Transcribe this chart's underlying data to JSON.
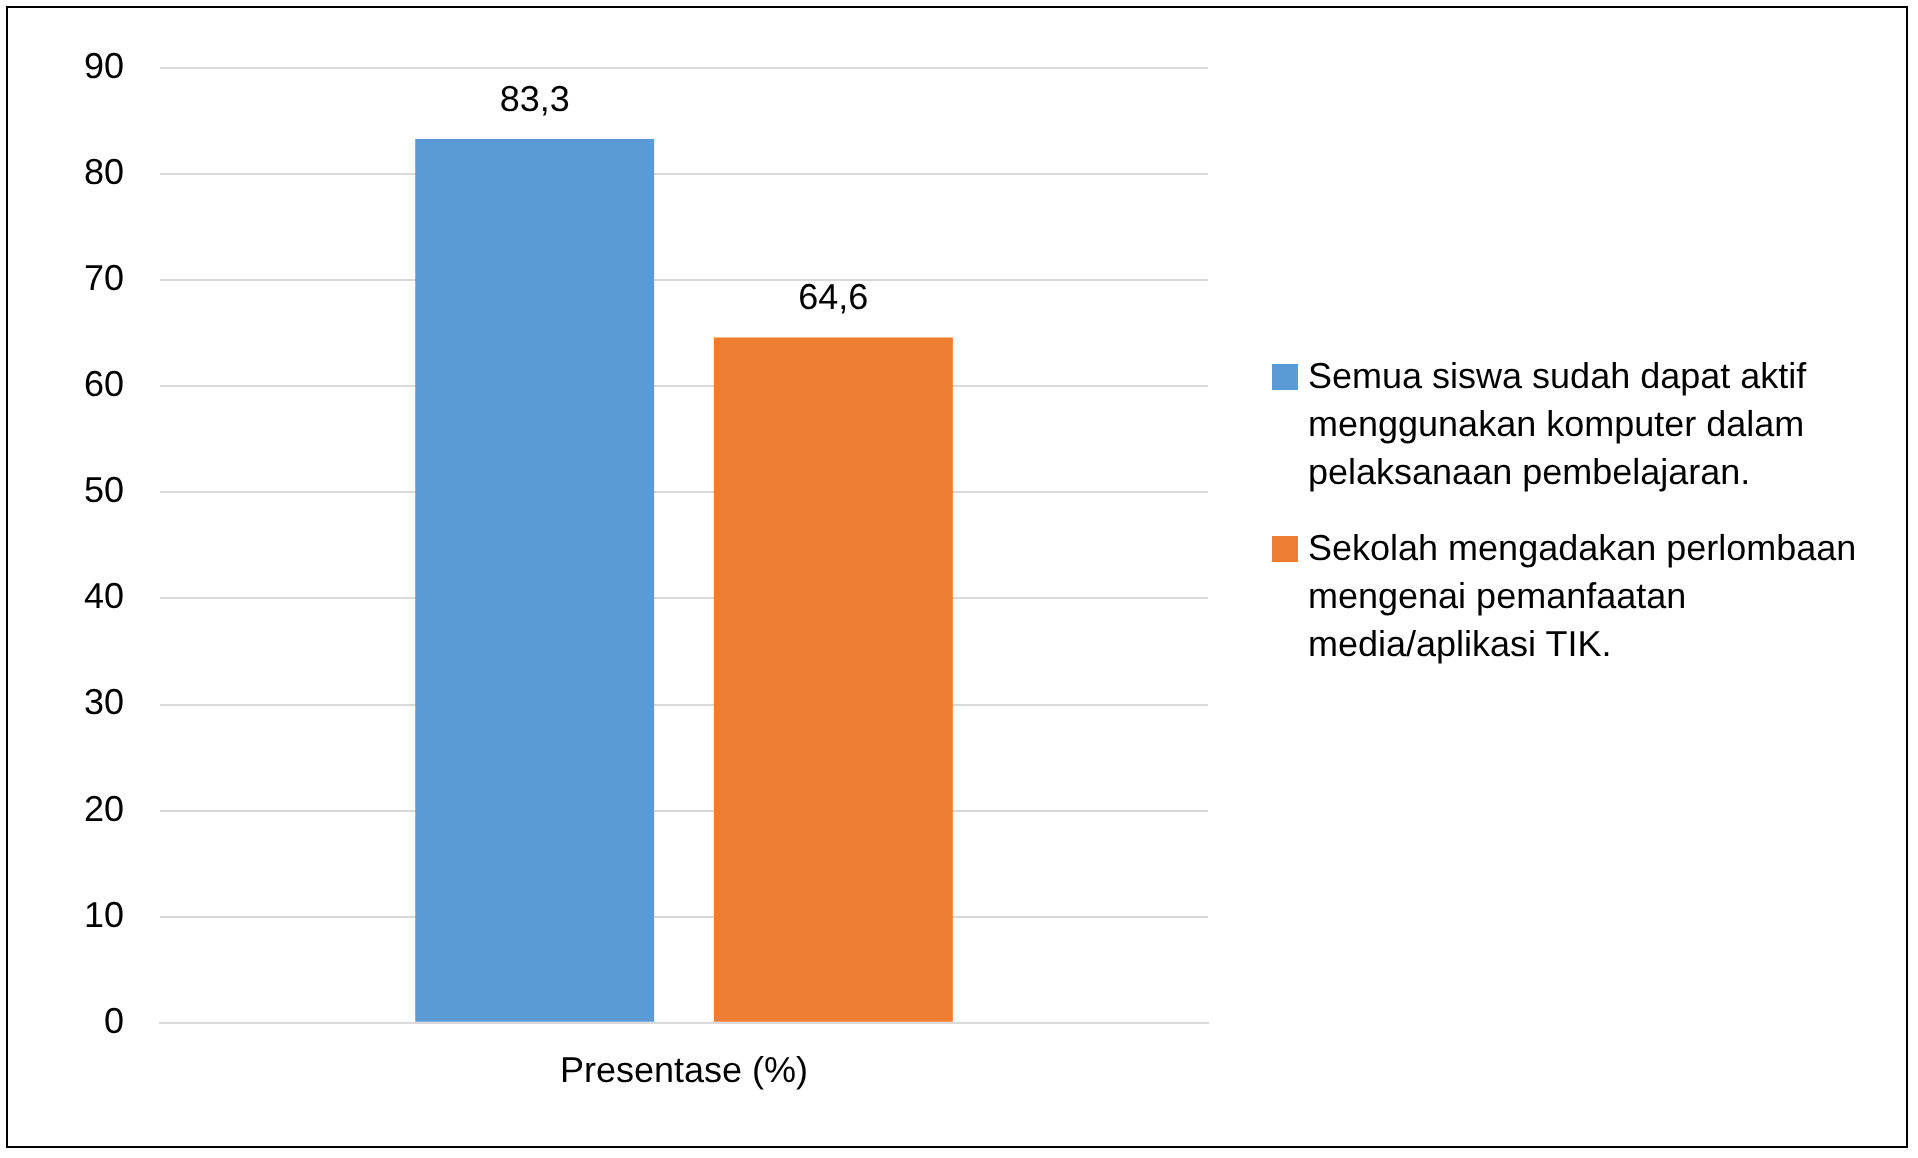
{
  "chart_data": {
    "type": "bar",
    "categories": [
      "Presentase (%)"
    ],
    "series": [
      {
        "name": "Semua siswa sudah dapat aktif menggunakan komputer dalam pelaksanaan pembelajaran.",
        "color": "#5b9bd5",
        "values": [
          83.3
        ],
        "value_labels": [
          "83,3"
        ]
      },
      {
        "name": "Sekolah mengadakan perlombaan mengenai pemanfaatan media/aplikasi TIK.",
        "color": "#ed7d31",
        "values": [
          64.6
        ],
        "value_labels": [
          "64,6"
        ]
      }
    ],
    "ylim": [
      0,
      90
    ],
    "yticks": [
      0,
      10,
      20,
      30,
      40,
      50,
      60,
      70,
      80,
      90
    ],
    "grid": "y",
    "legend": "right"
  }
}
